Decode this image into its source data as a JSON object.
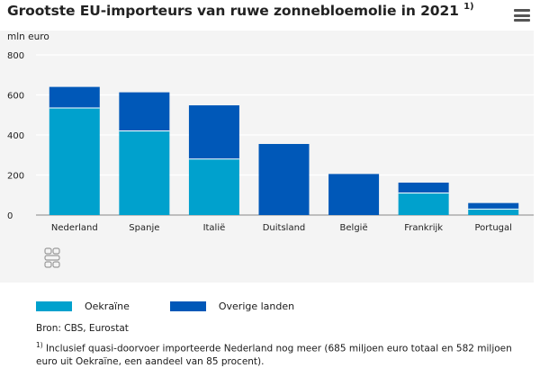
{
  "title": "Grootste EU-importeurs van ruwe zonnebloemolie in 2021",
  "title_footnote_mark": "1)",
  "menu_icon": "hamburger-menu-icon",
  "logo_icon": "cbs-logo-icon",
  "chart_data": {
    "type": "bar",
    "stacked": true,
    "title": "Grootste EU-importeurs van ruwe zonnebloemolie in 2021",
    "ylabel": "mln euro",
    "xlabel": "",
    "ylim": [
      0,
      800
    ],
    "yticks": [
      "800",
      "600",
      "400",
      "200",
      "0"
    ],
    "grid": true,
    "legend_position": "bottom-left",
    "categories": [
      "Nederland",
      "Spanje",
      "Italië",
      "Duitsland",
      "België",
      "Frankrijk",
      "Portugal"
    ],
    "series": [
      {
        "name": "Oekraïne",
        "color": "#00a1cd",
        "values": [
          535,
          420,
          280,
          0,
          0,
          110,
          30
        ]
      },
      {
        "name": "Overige landen",
        "color": "#0058b8",
        "values": [
          105,
          193,
          268,
          355,
          205,
          52,
          30
        ]
      }
    ]
  },
  "legend": [
    {
      "label": "Oekraïne",
      "color": "#00a1cd"
    },
    {
      "label": "Overige landen",
      "color": "#0058b8"
    }
  ],
  "source": "Bron: CBS, Eurostat",
  "footnote_mark": "1)",
  "footnote": "Inclusief quasi-doorvoer importeerde Nederland nog meer (685 miljoen euro totaal en 582 miljoen euro uit Oekraïne, een aandeel van 85 procent)."
}
